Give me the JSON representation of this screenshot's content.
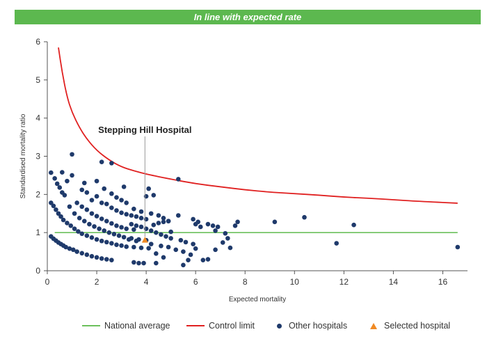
{
  "banner": {
    "text": "In line with expected rate"
  },
  "colors": {
    "banner": "#5cb84f",
    "national_average": "#6cc05c",
    "control_limit": "#e02020",
    "other_hospitals": "#1f3a6b",
    "selected_hospital": "#f08a24",
    "annotation_line": "#999999"
  },
  "chart_data": {
    "type": "scatter",
    "xlabel": "Expected mortality",
    "ylabel": "Standardised mortality ratio",
    "xlim": [
      0,
      17
    ],
    "ylim": [
      0,
      6
    ],
    "xticks": [
      0,
      2,
      4,
      6,
      8,
      10,
      12,
      14,
      16
    ],
    "yticks": [
      0,
      1,
      2,
      3,
      4,
      5,
      6
    ],
    "grid": false,
    "legend_position": "bottom",
    "annotation": {
      "text": "Stepping Hill Hospital",
      "x": 3.95,
      "y": 0.78
    },
    "national_average": {
      "name": "National average",
      "y": 1,
      "x_range": [
        0.3,
        16.6
      ]
    },
    "control_limit": {
      "name": "Control limit",
      "points": [
        [
          0.45,
          5.85
        ],
        [
          0.6,
          5.2
        ],
        [
          0.8,
          4.55
        ],
        [
          1.0,
          4.15
        ],
        [
          1.3,
          3.75
        ],
        [
          1.6,
          3.45
        ],
        [
          2.0,
          3.15
        ],
        [
          2.5,
          2.9
        ],
        [
          3.0,
          2.72
        ],
        [
          3.5,
          2.62
        ],
        [
          4.0,
          2.53
        ],
        [
          5.0,
          2.4
        ],
        [
          6.0,
          2.28
        ],
        [
          7.0,
          2.2
        ],
        [
          8.0,
          2.12
        ],
        [
          9.0,
          2.06
        ],
        [
          10.0,
          2.02
        ],
        [
          11.0,
          1.98
        ],
        [
          12.0,
          1.93
        ],
        [
          13.0,
          1.9
        ],
        [
          14.0,
          1.86
        ],
        [
          15.0,
          1.82
        ],
        [
          16.6,
          1.77
        ]
      ]
    },
    "series": [
      {
        "name": "Other hospitals",
        "marker": "circle",
        "points": [
          [
            0.15,
            2.57
          ],
          [
            0.3,
            2.42
          ],
          [
            0.4,
            2.28
          ],
          [
            0.5,
            2.18
          ],
          [
            0.6,
            2.05
          ],
          [
            0.7,
            1.98
          ],
          [
            0.6,
            2.58
          ],
          [
            0.8,
            2.35
          ],
          [
            1.0,
            2.5
          ],
          [
            1.0,
            3.05
          ],
          [
            0.15,
            1.78
          ],
          [
            0.25,
            1.7
          ],
          [
            0.35,
            1.6
          ],
          [
            0.45,
            1.5
          ],
          [
            0.55,
            1.42
          ],
          [
            0.65,
            1.33
          ],
          [
            0.8,
            1.25
          ],
          [
            0.95,
            1.18
          ],
          [
            1.1,
            1.1
          ],
          [
            1.25,
            1.03
          ],
          [
            1.4,
            0.97
          ],
          [
            1.6,
            0.92
          ],
          [
            1.8,
            0.87
          ],
          [
            2.0,
            0.82
          ],
          [
            2.2,
            0.78
          ],
          [
            2.4,
            0.75
          ],
          [
            2.6,
            0.72
          ],
          [
            2.8,
            0.68
          ],
          [
            3.0,
            0.66
          ],
          [
            3.2,
            0.63
          ],
          [
            3.5,
            0.62
          ],
          [
            3.8,
            0.6
          ],
          [
            4.1,
            0.59
          ],
          [
            0.15,
            0.9
          ],
          [
            0.25,
            0.84
          ],
          [
            0.35,
            0.79
          ],
          [
            0.45,
            0.74
          ],
          [
            0.55,
            0.7
          ],
          [
            0.65,
            0.66
          ],
          [
            0.75,
            0.62
          ],
          [
            0.9,
            0.58
          ],
          [
            1.05,
            0.55
          ],
          [
            1.2,
            0.5
          ],
          [
            1.4,
            0.46
          ],
          [
            1.6,
            0.42
          ],
          [
            1.8,
            0.38
          ],
          [
            2.0,
            0.35
          ],
          [
            2.2,
            0.32
          ],
          [
            2.4,
            0.3
          ],
          [
            2.6,
            0.28
          ],
          [
            0.9,
            1.68
          ],
          [
            1.1,
            1.5
          ],
          [
            1.3,
            1.38
          ],
          [
            1.5,
            1.3
          ],
          [
            1.7,
            1.22
          ],
          [
            1.9,
            1.16
          ],
          [
            2.1,
            1.1
          ],
          [
            2.3,
            1.05
          ],
          [
            2.5,
            1.0
          ],
          [
            2.7,
            0.96
          ],
          [
            2.9,
            0.92
          ],
          [
            3.1,
            0.88
          ],
          [
            3.4,
            0.85
          ],
          [
            3.7,
            0.82
          ],
          [
            4.0,
            0.8
          ],
          [
            1.2,
            1.78
          ],
          [
            1.4,
            1.68
          ],
          [
            1.6,
            1.6
          ],
          [
            1.8,
            1.5
          ],
          [
            2.0,
            1.43
          ],
          [
            2.2,
            1.36
          ],
          [
            2.4,
            1.3
          ],
          [
            2.6,
            1.24
          ],
          [
            2.8,
            1.18
          ],
          [
            3.0,
            1.14
          ],
          [
            3.2,
            1.1
          ],
          [
            3.5,
            1.08
          ],
          [
            1.4,
            2.12
          ],
          [
            1.6,
            2.05
          ],
          [
            1.5,
            2.3
          ],
          [
            1.8,
            1.85
          ],
          [
            2.0,
            1.95
          ],
          [
            2.2,
            1.78
          ],
          [
            2.4,
            1.75
          ],
          [
            2.6,
            1.65
          ],
          [
            2.8,
            1.58
          ],
          [
            3.0,
            1.52
          ],
          [
            3.2,
            1.48
          ],
          [
            3.4,
            1.45
          ],
          [
            3.6,
            1.42
          ],
          [
            3.8,
            1.38
          ],
          [
            4.0,
            1.35
          ],
          [
            2.0,
            2.35
          ],
          [
            2.3,
            2.15
          ],
          [
            2.6,
            2.02
          ],
          [
            2.8,
            1.92
          ],
          [
            3.0,
            1.85
          ],
          [
            3.2,
            1.78
          ],
          [
            3.5,
            1.62
          ],
          [
            3.8,
            1.55
          ],
          [
            4.2,
            1.5
          ],
          [
            4.5,
            1.45
          ],
          [
            4.7,
            1.38
          ],
          [
            4.9,
            1.3
          ],
          [
            5.3,
            1.45
          ],
          [
            2.2,
            2.85
          ],
          [
            2.6,
            2.82
          ],
          [
            3.1,
            2.2
          ],
          [
            4.1,
            2.15
          ],
          [
            4.0,
            1.95
          ],
          [
            4.3,
            1.98
          ],
          [
            5.3,
            2.4
          ],
          [
            5.0,
            1.02
          ],
          [
            3.4,
            1.22
          ],
          [
            3.6,
            1.18
          ],
          [
            3.8,
            1.15
          ],
          [
            4.0,
            1.1
          ],
          [
            4.2,
            1.05
          ],
          [
            4.4,
            1.0
          ],
          [
            4.6,
            0.95
          ],
          [
            4.8,
            0.9
          ],
          [
            5.0,
            0.85
          ],
          [
            5.4,
            0.8
          ],
          [
            5.6,
            0.75
          ],
          [
            5.9,
            0.7
          ],
          [
            4.3,
            1.2
          ],
          [
            4.5,
            1.25
          ],
          [
            4.7,
            1.28
          ],
          [
            4.9,
            1.3
          ],
          [
            3.3,
            0.82
          ],
          [
            3.6,
            0.78
          ],
          [
            4.2,
            0.7
          ],
          [
            4.6,
            0.65
          ],
          [
            4.9,
            0.62
          ],
          [
            5.2,
            0.55
          ],
          [
            4.4,
            0.45
          ],
          [
            4.7,
            0.35
          ],
          [
            5.5,
            0.5
          ],
          [
            6.0,
            0.58
          ],
          [
            3.5,
            0.22
          ],
          [
            3.7,
            0.2
          ],
          [
            3.9,
            0.2
          ],
          [
            4.4,
            0.2
          ],
          [
            5.5,
            0.15
          ],
          [
            5.7,
            0.28
          ],
          [
            5.8,
            0.42
          ],
          [
            6.3,
            0.28
          ],
          [
            6.5,
            0.3
          ],
          [
            6.8,
            0.55
          ],
          [
            7.1,
            0.74
          ],
          [
            7.4,
            0.6
          ],
          [
            5.9,
            1.35
          ],
          [
            6.1,
            1.28
          ],
          [
            6.5,
            1.22
          ],
          [
            6.7,
            1.18
          ],
          [
            6.9,
            1.15
          ],
          [
            6.8,
            1.05
          ],
          [
            7.2,
            0.98
          ],
          [
            7.3,
            0.85
          ],
          [
            7.6,
            1.18
          ],
          [
            7.7,
            1.28
          ],
          [
            6.0,
            1.22
          ],
          [
            6.2,
            1.15
          ],
          [
            9.2,
            1.28
          ],
          [
            10.4,
            1.4
          ],
          [
            11.7,
            0.72
          ],
          [
            12.4,
            1.2
          ],
          [
            16.6,
            0.62
          ]
        ]
      },
      {
        "name": "Selected hospital",
        "marker": "triangle",
        "points": [
          [
            3.95,
            0.8
          ]
        ]
      }
    ]
  }
}
